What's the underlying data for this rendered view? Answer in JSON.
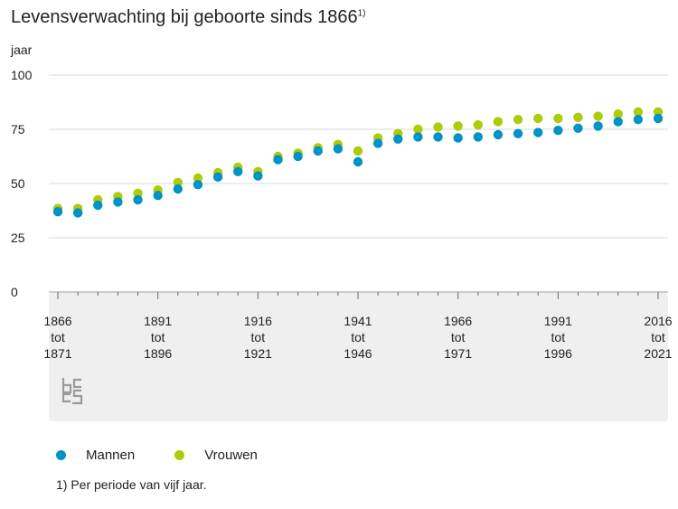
{
  "title": "Levensverwachting bij geboorte sinds 1866",
  "title_note": "1)",
  "footnote": "1) Per periode van vijf jaar.",
  "chart_data": {
    "type": "scatter",
    "ylabel": "jaar",
    "ylim": [
      0,
      100
    ],
    "yticks": [
      0,
      25,
      50,
      75,
      100
    ],
    "grid": true,
    "legend": "bottom-left",
    "categories": [
      "1866-1871",
      "1871-1876",
      "1876-1881",
      "1881-1886",
      "1886-1891",
      "1891-1896",
      "1896-1901",
      "1901-1906",
      "1906-1911",
      "1911-1916",
      "1916-1921",
      "1921-1926",
      "1926-1931",
      "1931-1936",
      "1936-1941",
      "1941-1946",
      "1946-1951",
      "1951-1956",
      "1956-1961",
      "1961-1966",
      "1966-1971",
      "1971-1976",
      "1976-1981",
      "1981-1986",
      "1986-1991",
      "1991-1996",
      "1996-2001",
      "2001-2006",
      "2006-2011",
      "2011-2016",
      "2016-2021"
    ],
    "tick_labels": [
      {
        "index": 0,
        "lines": [
          "1866",
          "tot",
          "1871"
        ]
      },
      {
        "index": 5,
        "lines": [
          "1891",
          "tot",
          "1896"
        ]
      },
      {
        "index": 10,
        "lines": [
          "1916",
          "tot",
          "1921"
        ]
      },
      {
        "index": 15,
        "lines": [
          "1941",
          "tot",
          "1946"
        ]
      },
      {
        "index": 20,
        "lines": [
          "1966",
          "tot",
          "1971"
        ]
      },
      {
        "index": 25,
        "lines": [
          "1991",
          "tot",
          "1996"
        ]
      },
      {
        "index": 30,
        "lines": [
          "2016",
          "tot",
          "2021"
        ]
      }
    ],
    "series": [
      {
        "name": "Mannen",
        "color": "#0093c8",
        "values": [
          37.0,
          36.5,
          40.0,
          41.5,
          42.5,
          44.5,
          47.5,
          49.5,
          53.0,
          55.5,
          53.5,
          61.0,
          62.5,
          65.0,
          66.0,
          60.0,
          68.5,
          70.5,
          71.5,
          71.5,
          71.0,
          71.5,
          72.5,
          73.0,
          73.5,
          74.5,
          75.5,
          76.5,
          78.5,
          79.5,
          80.0
        ]
      },
      {
        "name": "Vrouwen",
        "color": "#afcb05",
        "values": [
          38.5,
          38.5,
          42.5,
          44.0,
          45.5,
          47.0,
          50.5,
          52.5,
          55.0,
          57.5,
          55.5,
          62.5,
          64.0,
          66.5,
          68.0,
          65.0,
          71.0,
          73.0,
          75.0,
          76.0,
          76.5,
          77.0,
          78.5,
          79.5,
          80.0,
          80.0,
          80.5,
          81.0,
          82.0,
          83.0,
          83.0
        ]
      }
    ]
  },
  "logo": {
    "name": "cbs-logo",
    "color": "#9a9a9a"
  }
}
